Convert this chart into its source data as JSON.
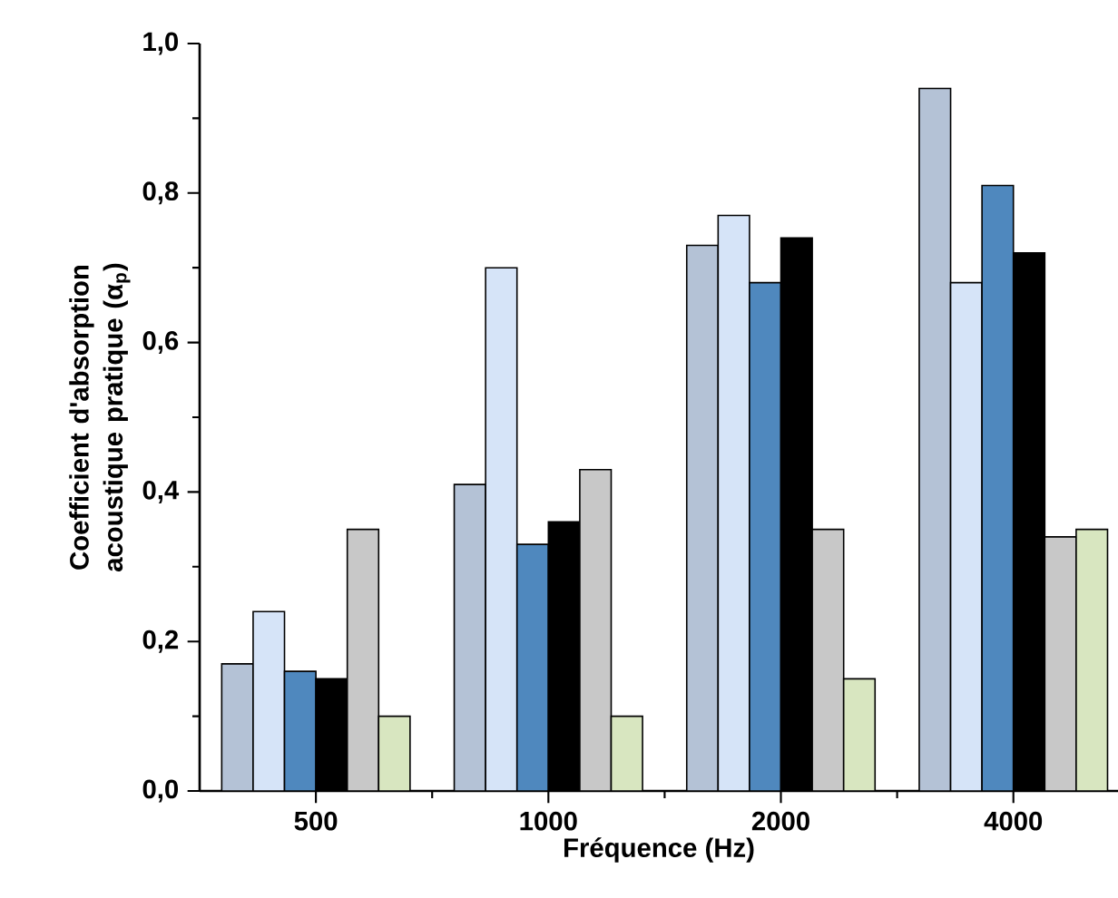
{
  "chart_data": {
    "type": "bar",
    "xlabel": "Fréquence (Hz)",
    "ylabel": "Coefficient d'absorption acoustique pratique (α$_{p}$)",
    "categories": [
      "500",
      "1000",
      "2000",
      "4000"
    ],
    "series": [
      {
        "color": "#b4c2d6",
        "values": [
          0.17,
          0.41,
          0.73,
          0.94
        ]
      },
      {
        "color": "#d6e4f8",
        "values": [
          0.24,
          0.7,
          0.77,
          0.68
        ]
      },
      {
        "color": "#4f88be",
        "values": [
          0.16,
          0.33,
          0.68,
          0.81
        ]
      },
      {
        "color": "#000000",
        "values": [
          0.15,
          0.36,
          0.74,
          0.72
        ]
      },
      {
        "color": "#c8c8c8",
        "values": [
          0.35,
          0.43,
          0.35,
          0.34
        ]
      },
      {
        "color": "#d8e6c0",
        "values": [
          0.1,
          0.1,
          0.15,
          0.35
        ]
      }
    ],
    "ylim": [
      0,
      1.0
    ],
    "yticks": [
      {
        "value": 0,
        "label": "0,0"
      },
      {
        "value": 0.2,
        "label": "0,2"
      },
      {
        "value": 0.4,
        "label": "0,4"
      },
      {
        "value": 0.6,
        "label": "0,6"
      },
      {
        "value": 0.8,
        "label": "0,8"
      },
      {
        "value": 1.0,
        "label": "1,0"
      }
    ],
    "tick_labels": "xy"
  }
}
